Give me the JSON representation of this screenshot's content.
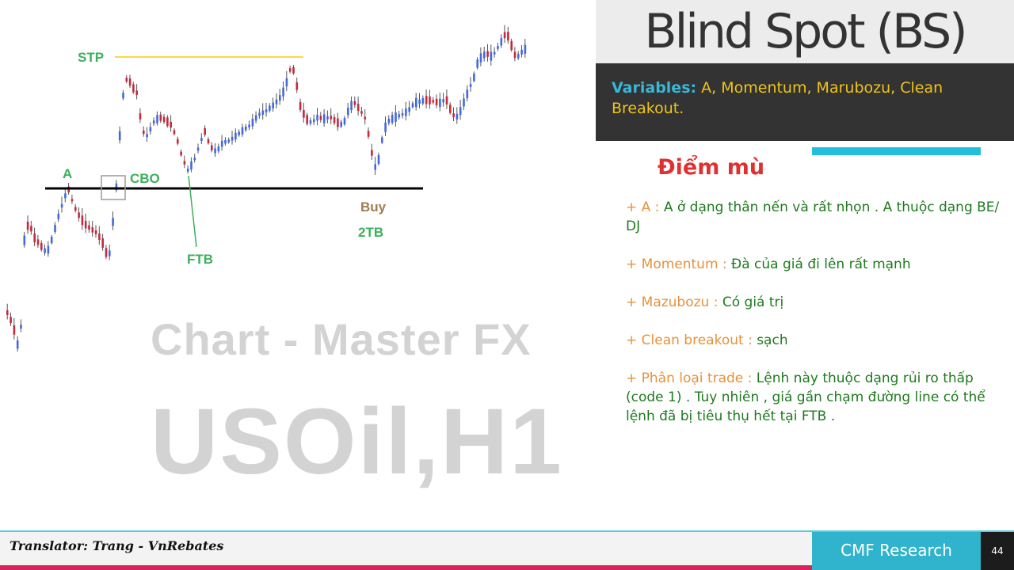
{
  "slide": {
    "title": "Blind Spot (BS)",
    "variables_label": "Variables:",
    "variables_text": " A, Momentum, Marubozu, Clean Breakout.",
    "section_title": "Điểm mù",
    "notes": [
      {
        "key": "+ A : ",
        "value": "A ở dạng thân nến và rất nhọn . A thuộc dạng BE/ DJ"
      },
      {
        "key": "+ Momentum : ",
        "value": "Đà của giá đi lên rất mạnh"
      },
      {
        "key": "+ Mazubozu : ",
        "value": "Có giá trị"
      },
      {
        "key": "+ Clean breakout : ",
        "value": "sạch"
      },
      {
        "key": "+ Phân loại trade : ",
        "value": "Lệnh này thuộc dạng rủi ro thấp (code 1) . Tuy nhiên , giá gần chạm đường line có thể lệnh đã bị tiêu thụ hết tại FTB ."
      }
    ]
  },
  "chart": {
    "labels": {
      "stp": "STP",
      "a": "A",
      "cbo": "CBO",
      "ftb": "FTB",
      "buy": "Buy",
      "two_tb": "2TB"
    },
    "watermark_line1": "Chart - Master FX",
    "watermark_line2": "USOil,H1",
    "colors": {
      "bull": "#4169e1",
      "bear": "#c8283c",
      "stp_line": "#f2dc4a",
      "level_line": "#000000",
      "label_green": "#3db05b",
      "label_brown": "#a07c4e"
    }
  },
  "footer": {
    "translator": "Translator: Trang - VnRebates",
    "brand": "CMF Research",
    "page_number": "44"
  },
  "colors": {
    "accent_cyan": "#22c0de",
    "title_red": "#e03131",
    "key_orange": "#e8913a",
    "value_green": "#1f7a1f",
    "dark_panel": "#333333",
    "pink_line": "#d7245f"
  }
}
